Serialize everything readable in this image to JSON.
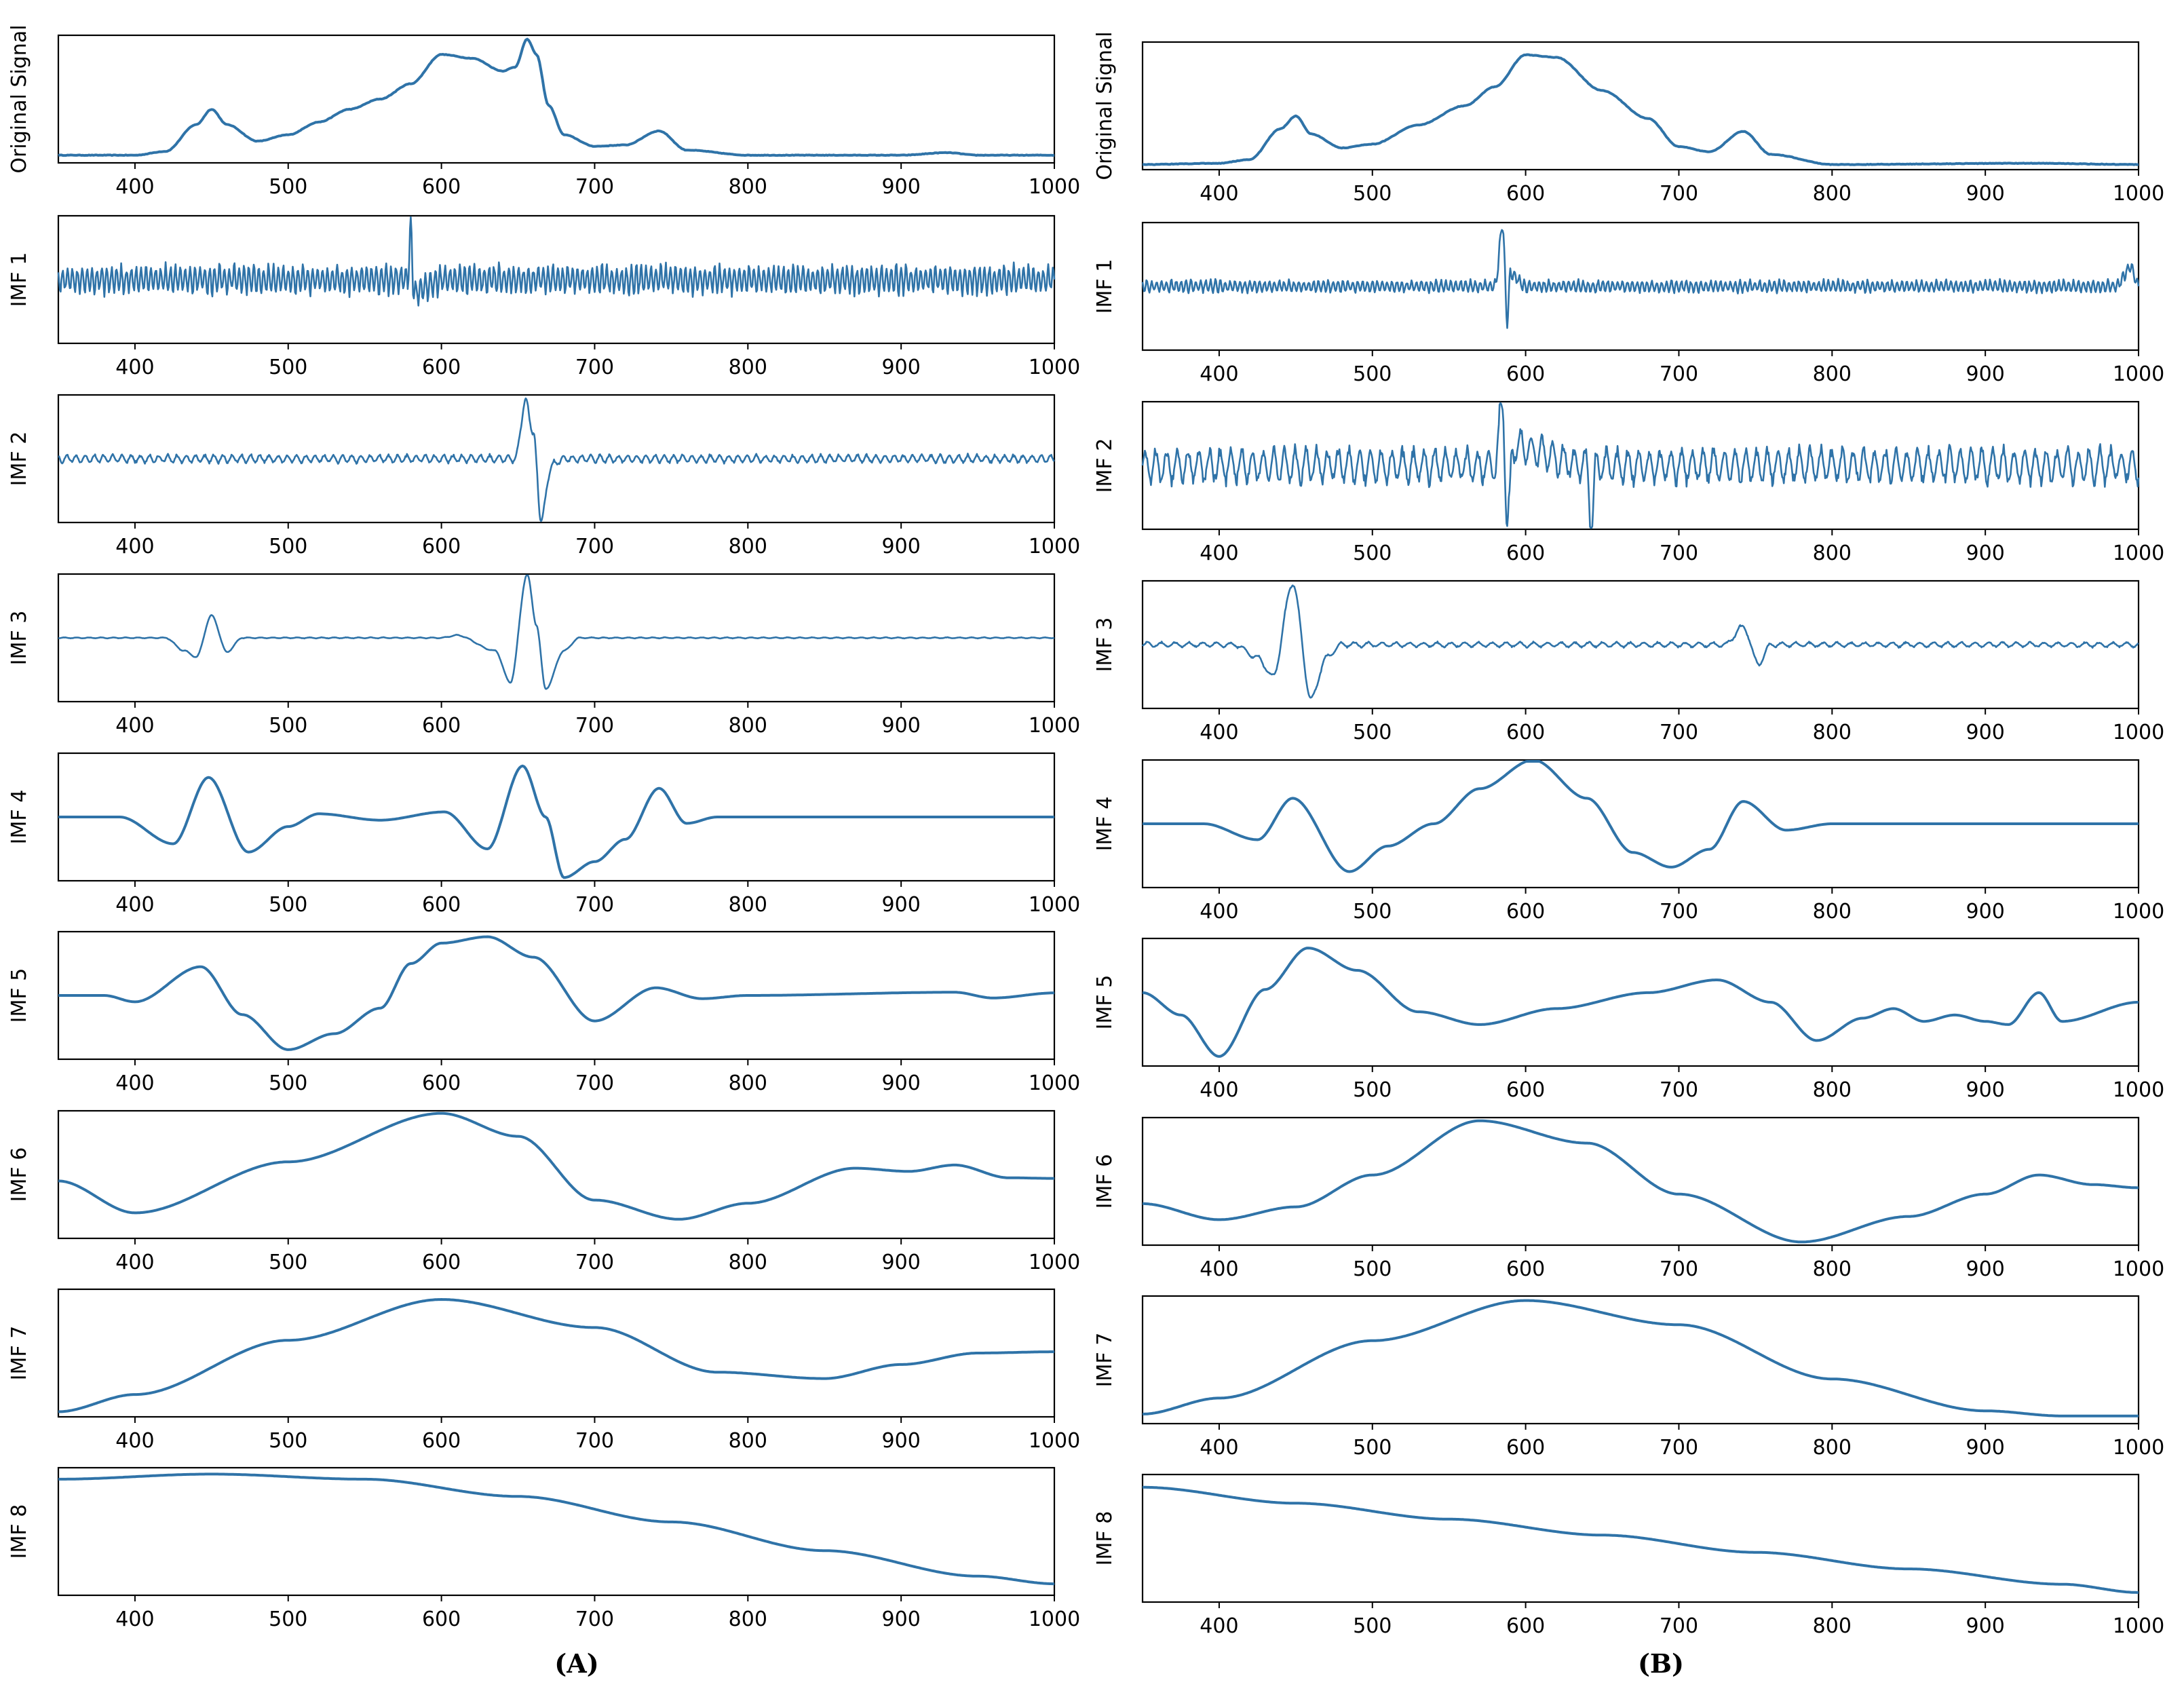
{
  "figure": {
    "line_color": "#2f73a8",
    "columns": [
      {
        "label": "(A)",
        "panels": [
          {
            "ylabel": "Original Signal",
            "signal": "orig_A",
            "noise": 0.004
          },
          {
            "ylabel": "IMF 1",
            "signal": "imf1_A",
            "noise": 0.0
          },
          {
            "ylabel": "IMF 2",
            "signal": "imf2_A",
            "noise": 0.0
          },
          {
            "ylabel": "IMF 3",
            "signal": "imf3_A",
            "noise": 0.0
          },
          {
            "ylabel": "IMF 4",
            "signal": "imf4_A",
            "noise": 0.0
          },
          {
            "ylabel": "IMF 5",
            "signal": "imf5_A",
            "noise": 0.0
          },
          {
            "ylabel": "IMF 6",
            "signal": "imf6_A",
            "noise": 0.0
          },
          {
            "ylabel": "IMF 7",
            "signal": "imf7_A",
            "noise": 0.0
          },
          {
            "ylabel": "IMF 8",
            "signal": "imf8_A",
            "noise": 0.0
          }
        ]
      },
      {
        "label": "(B)",
        "panels": [
          {
            "ylabel": "Original Signal",
            "signal": "orig_B",
            "noise": 0.004
          },
          {
            "ylabel": "IMF 1",
            "signal": "imf1_B",
            "noise": 0.0
          },
          {
            "ylabel": "IMF 2",
            "signal": "imf2_B",
            "noise": 0.0
          },
          {
            "ylabel": "IMF 3",
            "signal": "imf3_B",
            "noise": 0.0
          },
          {
            "ylabel": "IMF 4",
            "signal": "imf4_B",
            "noise": 0.0
          },
          {
            "ylabel": "IMF 5",
            "signal": "imf5_B",
            "noise": 0.0
          },
          {
            "ylabel": "IMF 6",
            "signal": "imf6_B",
            "noise": 0.0
          },
          {
            "ylabel": "IMF 7",
            "signal": "imf7_B",
            "noise": 0.0
          },
          {
            "ylabel": "IMF 8",
            "signal": "imf8_B",
            "noise": 0.0
          }
        ]
      }
    ]
  },
  "chart_data": {
    "type": "line",
    "title": "",
    "xlabel": "",
    "x_range": [
      350,
      1000
    ],
    "x_ticks": [
      400,
      500,
      600,
      700,
      800,
      900,
      1000
    ],
    "x_tick_labels": [
      "400",
      "500",
      "600",
      "700",
      "800",
      "900",
      "1000"
    ],
    "y_ticks_shown": false,
    "grid": false,
    "note": "Empirical mode decomposition of two spectra; y values are normalized signal levels estimated from the figure (no y tick labels shown).",
    "signals": {
      "orig_A": {
        "ylim": [
          0,
          1
        ],
        "points": [
          [
            350,
            0.06
          ],
          [
            400,
            0.06
          ],
          [
            420,
            0.09
          ],
          [
            440,
            0.3
          ],
          [
            450,
            0.42
          ],
          [
            460,
            0.3
          ],
          [
            480,
            0.17
          ],
          [
            500,
            0.22
          ],
          [
            520,
            0.32
          ],
          [
            540,
            0.42
          ],
          [
            560,
            0.5
          ],
          [
            580,
            0.62
          ],
          [
            600,
            0.85
          ],
          [
            620,
            0.82
          ],
          [
            640,
            0.72
          ],
          [
            648,
            0.75
          ],
          [
            656,
            0.97
          ],
          [
            662,
            0.85
          ],
          [
            670,
            0.45
          ],
          [
            680,
            0.22
          ],
          [
            700,
            0.13
          ],
          [
            720,
            0.14
          ],
          [
            742,
            0.25
          ],
          [
            760,
            0.1
          ],
          [
            800,
            0.06
          ],
          [
            900,
            0.06
          ],
          [
            930,
            0.08
          ],
          [
            950,
            0.06
          ],
          [
            1000,
            0.06
          ]
        ]
      },
      "imf1_A": {
        "ylim": [
          -1,
          1
        ],
        "points": [
          [
            350,
            0
          ],
          [
            578,
            0
          ],
          [
            580,
            0.82
          ],
          [
            582,
            -0.2
          ],
          [
            600,
            0
          ],
          [
            1000,
            0
          ]
        ],
        "osc": {
          "amp": 0.28,
          "period": 3.2
        }
      },
      "imf2_A": {
        "ylim": [
          -1,
          1
        ],
        "points": [
          [
            350,
            0
          ],
          [
            648,
            0
          ],
          [
            655,
            0.9
          ],
          [
            660,
            0.4
          ],
          [
            665,
            -0.95
          ],
          [
            672,
            -0.1
          ],
          [
            680,
            0
          ],
          [
            1000,
            0
          ]
        ],
        "osc": {
          "amp": 0.08,
          "period": 6
        }
      },
      "imf3_A": {
        "ylim": [
          -1,
          1
        ],
        "points": [
          [
            350,
            0
          ],
          [
            420,
            0
          ],
          [
            432,
            -0.2
          ],
          [
            440,
            -0.3
          ],
          [
            450,
            0.35
          ],
          [
            460,
            -0.22
          ],
          [
            470,
            0
          ],
          [
            600,
            0
          ],
          [
            610,
            0.04
          ],
          [
            635,
            -0.2
          ],
          [
            645,
            -0.7
          ],
          [
            656,
            1.0
          ],
          [
            662,
            0.2
          ],
          [
            668,
            -0.8
          ],
          [
            680,
            -0.2
          ],
          [
            690,
            0
          ],
          [
            1000,
            0
          ]
        ],
        "osc": {
          "amp": 0.01,
          "period": 8
        }
      },
      "imf4_A": {
        "ylim": [
          -1,
          1
        ],
        "points": [
          [
            350,
            0
          ],
          [
            390,
            0
          ],
          [
            425,
            -0.42
          ],
          [
            448,
            0.62
          ],
          [
            474,
            -0.55
          ],
          [
            500,
            -0.15
          ],
          [
            520,
            0.05
          ],
          [
            560,
            -0.05
          ],
          [
            602,
            0.08
          ],
          [
            630,
            -0.5
          ],
          [
            653,
            0.8
          ],
          [
            668,
            0
          ],
          [
            680,
            -0.95
          ],
          [
            700,
            -0.7
          ],
          [
            720,
            -0.35
          ],
          [
            742,
            0.45
          ],
          [
            760,
            -0.1
          ],
          [
            780,
            0
          ],
          [
            1000,
            0
          ]
        ]
      },
      "imf5_A": {
        "ylim": [
          -1,
          1
        ],
        "points": [
          [
            350,
            0
          ],
          [
            380,
            0
          ],
          [
            400,
            -0.1
          ],
          [
            443,
            0.45
          ],
          [
            470,
            -0.3
          ],
          [
            500,
            -0.85
          ],
          [
            530,
            -0.6
          ],
          [
            560,
            -0.2
          ],
          [
            580,
            0.5
          ],
          [
            600,
            0.82
          ],
          [
            630,
            0.92
          ],
          [
            660,
            0.6
          ],
          [
            700,
            -0.4
          ],
          [
            740,
            0.12
          ],
          [
            770,
            -0.05
          ],
          [
            800,
            0
          ],
          [
            935,
            0.05
          ],
          [
            960,
            -0.04
          ],
          [
            1000,
            0.04
          ]
        ]
      },
      "imf6_A": {
        "ylim": [
          -1,
          1
        ],
        "points": [
          [
            350,
            -0.1
          ],
          [
            400,
            -0.6
          ],
          [
            500,
            0.2
          ],
          [
            600,
            0.96
          ],
          [
            650,
            0.6
          ],
          [
            700,
            -0.4
          ],
          [
            755,
            -0.7
          ],
          [
            800,
            -0.45
          ],
          [
            870,
            0.1
          ],
          [
            905,
            0.05
          ],
          [
            935,
            0.15
          ],
          [
            970,
            -0.05
          ],
          [
            1000,
            -0.06
          ]
        ]
      },
      "imf7_A": {
        "ylim": [
          -1,
          1
        ],
        "points": [
          [
            350,
            -0.92
          ],
          [
            400,
            -0.65
          ],
          [
            500,
            0.2
          ],
          [
            600,
            0.84
          ],
          [
            700,
            0.4
          ],
          [
            780,
            -0.3
          ],
          [
            850,
            -0.4
          ],
          [
            900,
            -0.18
          ],
          [
            950,
            0.0
          ],
          [
            1000,
            0.02
          ]
        ]
      },
      "imf8_A": {
        "ylim": [
          -1,
          1
        ],
        "points": [
          [
            350,
            0.82
          ],
          [
            450,
            0.9
          ],
          [
            550,
            0.82
          ],
          [
            650,
            0.55
          ],
          [
            750,
            0.15
          ],
          [
            850,
            -0.3
          ],
          [
            950,
            -0.7
          ],
          [
            1000,
            -0.82
          ]
        ]
      },
      "orig_B": {
        "ylim": [
          0,
          1
        ],
        "points": [
          [
            350,
            0.04
          ],
          [
            400,
            0.05
          ],
          [
            420,
            0.08
          ],
          [
            440,
            0.32
          ],
          [
            450,
            0.42
          ],
          [
            460,
            0.28
          ],
          [
            480,
            0.17
          ],
          [
            500,
            0.2
          ],
          [
            530,
            0.35
          ],
          [
            560,
            0.5
          ],
          [
            580,
            0.65
          ],
          [
            600,
            0.9
          ],
          [
            620,
            0.88
          ],
          [
            650,
            0.62
          ],
          [
            680,
            0.4
          ],
          [
            700,
            0.18
          ],
          [
            720,
            0.14
          ],
          [
            742,
            0.3
          ],
          [
            760,
            0.12
          ],
          [
            800,
            0.04
          ],
          [
            930,
            0.05
          ],
          [
            1000,
            0.04
          ]
        ]
      },
      "imf1_B": {
        "ylim": [
          -1,
          1
        ],
        "points": [
          [
            350,
            0
          ],
          [
            580,
            0
          ],
          [
            585,
            0.95
          ],
          [
            588,
            -0.55
          ],
          [
            590,
            0.2
          ],
          [
            600,
            0
          ],
          [
            985,
            0
          ],
          [
            995,
            0.3
          ],
          [
            1000,
            0
          ]
        ],
        "osc": {
          "amp": 0.12,
          "period": 3.2
        }
      },
      "imf2_B": {
        "ylim": [
          -1,
          1
        ],
        "points": [
          [
            350,
            0
          ],
          [
            580,
            0
          ],
          [
            585,
            0.95
          ],
          [
            588,
            -0.95
          ],
          [
            592,
            0.3
          ],
          [
            640,
            0
          ],
          [
            643,
            -0.95
          ],
          [
            646,
            0
          ],
          [
            1000,
            0
          ]
        ],
        "osc": {
          "amp": 0.35,
          "period": 7
        }
      },
      "imf3_B": {
        "ylim": [
          -1,
          1
        ],
        "points": [
          [
            350,
            0
          ],
          [
            410,
            0
          ],
          [
            425,
            -0.2
          ],
          [
            435,
            -0.5
          ],
          [
            448,
            0.96
          ],
          [
            460,
            -0.85
          ],
          [
            470,
            -0.2
          ],
          [
            480,
            0
          ],
          [
            730,
            0
          ],
          [
            742,
            0.28
          ],
          [
            752,
            -0.3
          ],
          [
            760,
            0
          ],
          [
            1000,
            0
          ]
        ],
        "osc": {
          "amp": 0.05,
          "period": 9
        }
      },
      "imf4_B": {
        "ylim": [
          -1,
          1
        ],
        "points": [
          [
            350,
            0
          ],
          [
            390,
            0
          ],
          [
            425,
            -0.25
          ],
          [
            448,
            0.4
          ],
          [
            485,
            -0.75
          ],
          [
            510,
            -0.35
          ],
          [
            540,
            0
          ],
          [
            570,
            0.55
          ],
          [
            605,
            1.0
          ],
          [
            640,
            0.4
          ],
          [
            670,
            -0.45
          ],
          [
            695,
            -0.68
          ],
          [
            720,
            -0.4
          ],
          [
            742,
            0.35
          ],
          [
            770,
            -0.1
          ],
          [
            800,
            0
          ],
          [
            1000,
            0
          ]
        ]
      },
      "imf5_B": {
        "ylim": [
          -1,
          1
        ],
        "points": [
          [
            350,
            0.15
          ],
          [
            375,
            -0.2
          ],
          [
            400,
            -0.85
          ],
          [
            430,
            0.2
          ],
          [
            458,
            0.85
          ],
          [
            490,
            0.5
          ],
          [
            530,
            -0.15
          ],
          [
            570,
            -0.35
          ],
          [
            620,
            -0.1
          ],
          [
            680,
            0.15
          ],
          [
            725,
            0.35
          ],
          [
            760,
            0.0
          ],
          [
            790,
            -0.6
          ],
          [
            820,
            -0.25
          ],
          [
            840,
            -0.1
          ],
          [
            860,
            -0.3
          ],
          [
            880,
            -0.2
          ],
          [
            900,
            -0.3
          ],
          [
            915,
            -0.35
          ],
          [
            935,
            0.15
          ],
          [
            950,
            -0.3
          ],
          [
            1000,
            0.0
          ]
        ]
      },
      "imf6_B": {
        "ylim": [
          -1,
          1
        ],
        "points": [
          [
            350,
            -0.35
          ],
          [
            400,
            -0.6
          ],
          [
            450,
            -0.4
          ],
          [
            500,
            0.1
          ],
          [
            570,
            0.95
          ],
          [
            640,
            0.6
          ],
          [
            700,
            -0.2
          ],
          [
            780,
            -0.95
          ],
          [
            850,
            -0.55
          ],
          [
            900,
            -0.2
          ],
          [
            935,
            0.1
          ],
          [
            970,
            -0.05
          ],
          [
            1000,
            -0.1
          ]
        ]
      },
      "imf7_B": {
        "ylim": [
          -1,
          1
        ],
        "points": [
          [
            350,
            -0.85
          ],
          [
            400,
            -0.6
          ],
          [
            500,
            0.3
          ],
          [
            600,
            0.93
          ],
          [
            700,
            0.55
          ],
          [
            800,
            -0.3
          ],
          [
            900,
            -0.8
          ],
          [
            950,
            -0.88
          ],
          [
            1000,
            -0.88
          ]
        ]
      },
      "imf8_B": {
        "ylim": [
          -1,
          1
        ],
        "points": [
          [
            350,
            0.8
          ],
          [
            450,
            0.55
          ],
          [
            550,
            0.3
          ],
          [
            650,
            0.05
          ],
          [
            750,
            -0.22
          ],
          [
            850,
            -0.48
          ],
          [
            950,
            -0.72
          ],
          [
            1000,
            -0.85
          ]
        ]
      }
    }
  }
}
